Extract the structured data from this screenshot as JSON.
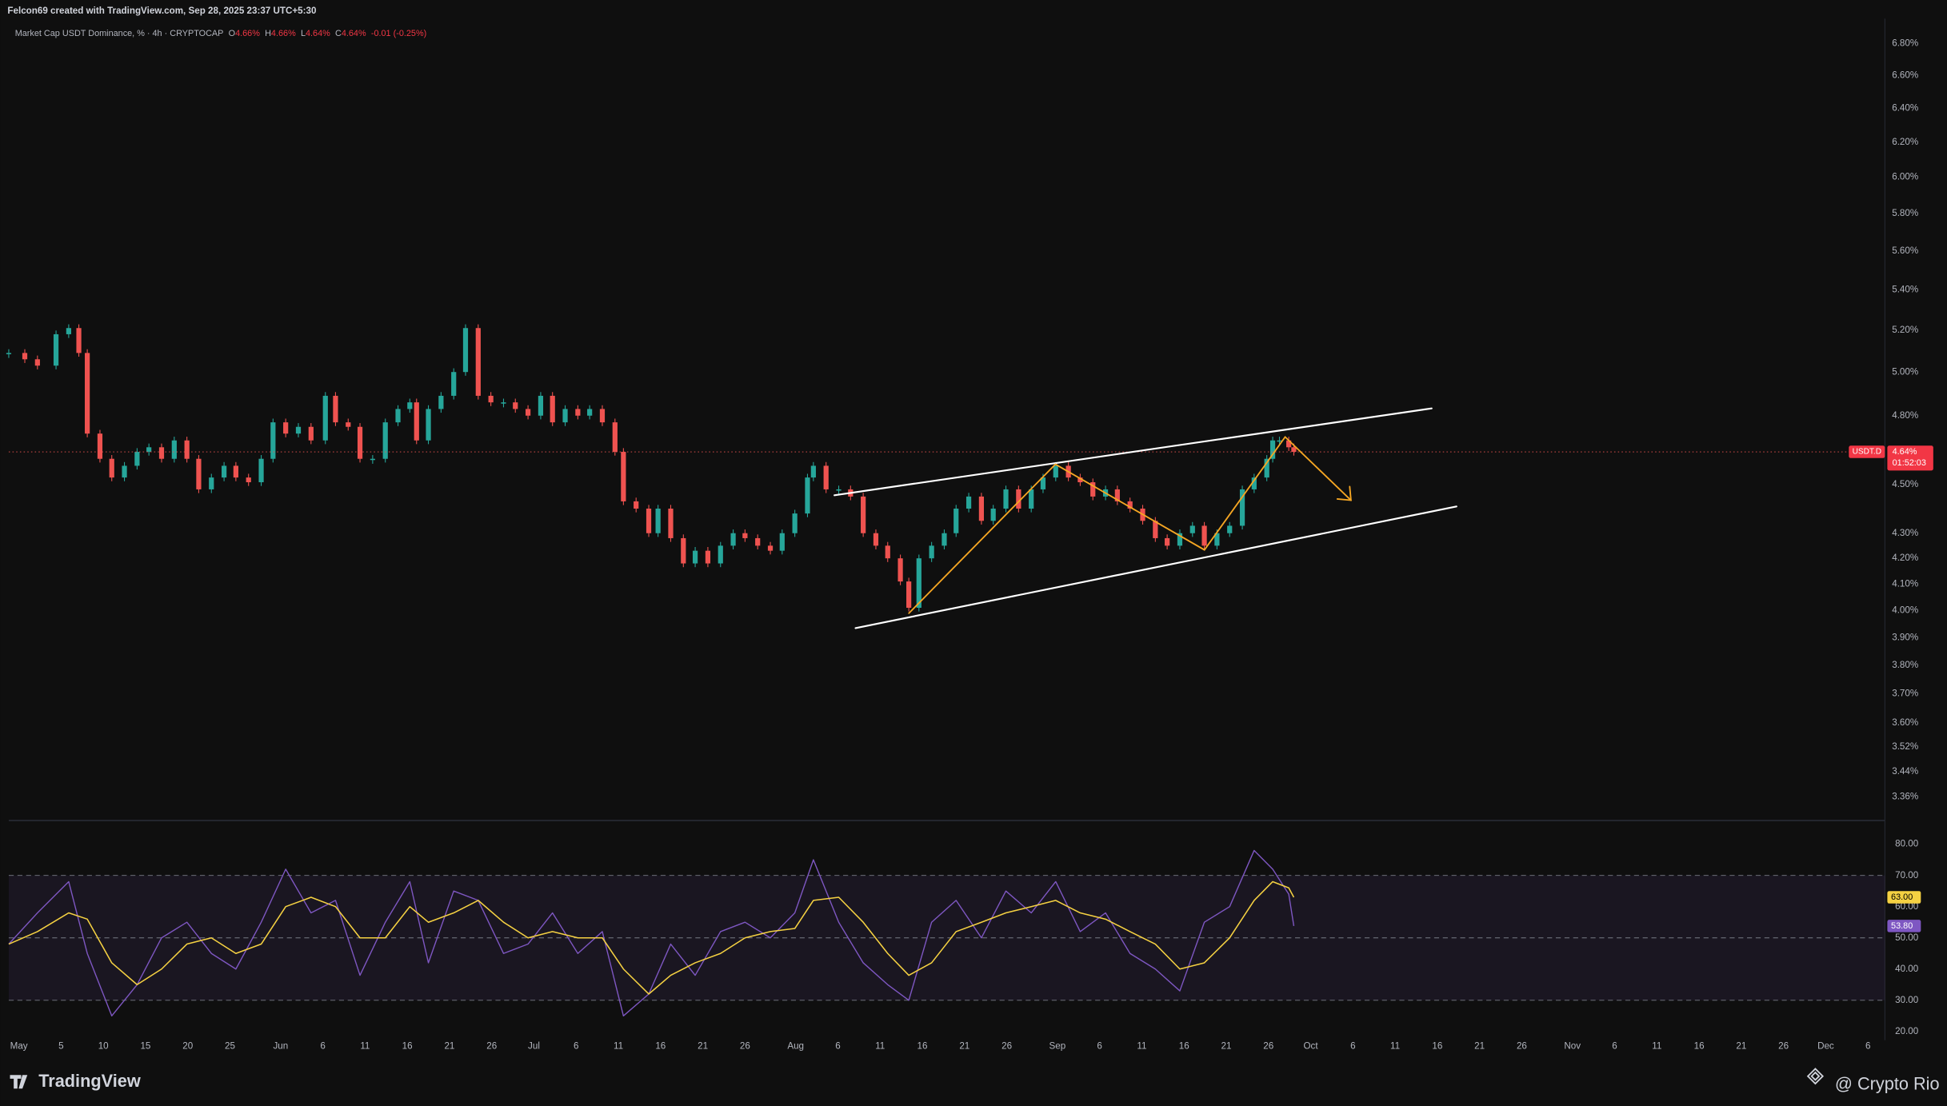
{
  "header": "Felcon69 created with TradingView.com, Sep 28, 2025 23:37 UTC+5:30",
  "footer": {
    "brand": "TradingView",
    "credit": "@ Crypto Rio"
  },
  "chart_data": [
    {
      "type": "candlestick",
      "title": "Market Cap USDT Dominance, % · 4h · CRYPTOCAP",
      "ohlc": [
        {
          "key": "O",
          "text": "4.66%"
        },
        {
          "key": "H",
          "text": "4.66%"
        },
        {
          "key": "L",
          "text": "4.64%"
        },
        {
          "key": "C",
          "text": "4.64%"
        }
      ],
      "change": "-0.01 (-0.25%)",
      "symbol": "USDT.D",
      "last_value": 4.64,
      "last_label": "4.64%",
      "countdown": "01:52:03",
      "log_scale": true,
      "grid": false,
      "up_color": "#26a69a",
      "down_color": "#ef5350",
      "x": [
        -1.2,
        0.7,
        2.2,
        4.4,
        5.9,
        7.1,
        8.1,
        9.6,
        11.0,
        12.5,
        14.0,
        15.4,
        16.9,
        18.4,
        19.9,
        21.3,
        22.8,
        24.3,
        25.7,
        27.2,
        28.7,
        30.1,
        31.6,
        33.1,
        34.6,
        36.3,
        37.5,
        39.0,
        40.4,
        41.9,
        43.4,
        44.9,
        46.3,
        47.1,
        48.5,
        50.0,
        51.5,
        52.9,
        54.4,
        55.9,
        57.4,
        58.8,
        60.3,
        61.8,
        63.2,
        64.7,
        66.2,
        67.6,
        69.1,
        70.6,
        71.6,
        73.1,
        74.6,
        75.7,
        77.2,
        78.7,
        80.1,
        81.6,
        83.1,
        84.6,
        86.0,
        87.5,
        89.0,
        90.4,
        91.9,
        93.4,
        94.1,
        95.6,
        97.1,
        98.5,
        100.0,
        101.5,
        102.9,
        104.4,
        105.4,
        106.6,
        108.1,
        109.6,
        111.0,
        112.5,
        114.0,
        115.4,
        116.9,
        118.4,
        119.9,
        121.3,
        122.8,
        124.3,
        125.7,
        127.2,
        128.7,
        130.1,
        131.6,
        133.1,
        134.6,
        136.0,
        137.5,
        139.0,
        140.4,
        141.9,
        143.4,
        144.9,
        146.3,
        147.8,
        148.5,
        149.3,
        150.4,
        151.0
      ],
      "series": [
        {
          "name": "USDT.D",
          "values": [
            5.09,
            5.06,
            5.03,
            5.18,
            5.21,
            5.09,
            4.72,
            4.61,
            4.53,
            4.58,
            4.64,
            4.66,
            4.61,
            4.69,
            4.61,
            4.48,
            4.53,
            4.58,
            4.53,
            4.51,
            4.61,
            4.77,
            4.72,
            4.75,
            4.69,
            4.89,
            4.77,
            4.75,
            4.61,
            4.61,
            4.77,
            4.83,
            4.86,
            4.69,
            4.83,
            4.89,
            5.0,
            5.21,
            4.89,
            4.86,
            4.86,
            4.83,
            4.8,
            4.89,
            4.77,
            4.83,
            4.8,
            4.83,
            4.77,
            4.64,
            4.43,
            4.4,
            4.3,
            4.4,
            4.28,
            4.18,
            4.23,
            4.18,
            4.25,
            4.3,
            4.28,
            4.25,
            4.23,
            4.3,
            4.38,
            4.53,
            4.58,
            4.48,
            4.48,
            4.45,
            4.3,
            4.25,
            4.2,
            4.11,
            4.01,
            4.2,
            4.25,
            4.3,
            4.4,
            4.45,
            4.35,
            4.4,
            4.48,
            4.4,
            4.48,
            4.53,
            4.58,
            4.53,
            4.51,
            4.45,
            4.48,
            4.43,
            4.4,
            4.35,
            4.28,
            4.25,
            4.3,
            4.33,
            4.25,
            4.3,
            4.33,
            4.48,
            4.53,
            4.61,
            4.69,
            4.69,
            4.66,
            4.64
          ]
        }
      ],
      "xlim": [
        -1.2,
        221
      ],
      "xticks": [
        {
          "value": 0,
          "label": "May"
        },
        5,
        10,
        15,
        20,
        25,
        {
          "value": 31,
          "label": "Jun"
        },
        {
          "value": 36,
          "label": "6"
        },
        {
          "value": 41,
          "label": "11"
        },
        {
          "value": 46,
          "label": "16"
        },
        {
          "value": 51,
          "label": "21"
        },
        {
          "value": 56,
          "label": "26"
        },
        {
          "value": 61,
          "label": "Jul"
        },
        {
          "value": 66,
          "label": "6"
        },
        {
          "value": 71,
          "label": "11"
        },
        {
          "value": 76,
          "label": "16"
        },
        {
          "value": 81,
          "label": "21"
        },
        {
          "value": 86,
          "label": "26"
        },
        {
          "value": 92,
          "label": "Aug"
        },
        {
          "value": 97,
          "label": "6"
        },
        {
          "value": 102,
          "label": "11"
        },
        {
          "value": 107,
          "label": "16"
        },
        {
          "value": 112,
          "label": "21"
        },
        {
          "value": 117,
          "label": "26"
        },
        {
          "value": 123,
          "label": "Sep"
        },
        {
          "value": 128,
          "label": "6"
        },
        {
          "value": 133,
          "label": "11"
        },
        {
          "value": 138,
          "label": "16"
        },
        {
          "value": 143,
          "label": "21"
        },
        {
          "value": 148,
          "label": "26"
        },
        {
          "value": 153,
          "label": "Oct"
        },
        {
          "value": 158,
          "label": "6"
        },
        {
          "value": 163,
          "label": "11"
        },
        {
          "value": 168,
          "label": "16"
        },
        {
          "value": 173,
          "label": "21"
        },
        {
          "value": 178,
          "label": "26"
        },
        {
          "value": 184,
          "label": "Nov"
        },
        {
          "value": 189,
          "label": "6"
        },
        {
          "value": 194,
          "label": "11"
        },
        {
          "value": 199,
          "label": "16"
        },
        {
          "value": 204,
          "label": "21"
        },
        {
          "value": 209,
          "label": "26"
        },
        {
          "value": 214,
          "label": "Dec"
        },
        {
          "value": 219,
          "label": "6"
        }
      ],
      "ylim": [
        3.29,
        6.96
      ],
      "yticks": [
        {
          "value": 6.8,
          "label": "6.80%"
        },
        {
          "value": 6.6,
          "label": "6.60%"
        },
        {
          "value": 6.4,
          "label": "6.40%"
        },
        {
          "value": 6.2,
          "label": "6.20%"
        },
        {
          "value": 6.0,
          "label": "6.00%"
        },
        {
          "value": 5.8,
          "label": "5.80%"
        },
        {
          "value": 5.6,
          "label": "5.60%"
        },
        {
          "value": 5.4,
          "label": "5.40%"
        },
        {
          "value": 5.2,
          "label": "5.20%"
        },
        {
          "value": 5.0,
          "label": "5.00%"
        },
        {
          "value": 4.8,
          "label": "4.80%"
        },
        {
          "value": 4.5,
          "label": "4.50%"
        },
        {
          "value": 4.3,
          "label": "4.30%"
        },
        {
          "value": 4.2,
          "label": "4.20%"
        },
        {
          "value": 4.1,
          "label": "4.10%"
        },
        {
          "value": 4.0,
          "label": "4.00%"
        },
        {
          "value": 3.9,
          "label": "3.90%"
        },
        {
          "value": 3.8,
          "label": "3.80%"
        },
        {
          "value": 3.7,
          "label": "3.70%"
        },
        {
          "value": 3.6,
          "label": "3.60%"
        },
        {
          "value": 3.52,
          "label": "3.52%"
        },
        {
          "value": 3.44,
          "label": "3.44%"
        },
        {
          "value": 3.36,
          "label": "3.36%"
        }
      ]
    },
    {
      "type": "line",
      "grid": false,
      "x": [
        -1.2,
        2.2,
        5.9,
        8.1,
        11.0,
        14.0,
        16.9,
        19.9,
        22.8,
        25.7,
        28.7,
        31.6,
        34.6,
        37.5,
        40.4,
        43.4,
        46.3,
        48.5,
        51.5,
        54.4,
        57.4,
        60.3,
        63.2,
        66.2,
        69.1,
        71.6,
        74.6,
        77.2,
        80.1,
        83.1,
        86.0,
        89.0,
        91.9,
        94.1,
        97.1,
        100.0,
        102.9,
        105.4,
        108.1,
        111.0,
        114.0,
        116.9,
        119.9,
        122.8,
        125.7,
        128.7,
        131.6,
        134.6,
        137.5,
        140.4,
        143.4,
        146.3,
        148.5,
        150.4,
        151.0
      ],
      "series": [
        {
          "name": "RSI",
          "color": "#7e57c2",
          "values": [
            48,
            58,
            68,
            45,
            25,
            35,
            50,
            55,
            45,
            40,
            55,
            72,
            58,
            62,
            38,
            55,
            68,
            42,
            65,
            62,
            45,
            48,
            58,
            45,
            52,
            25,
            32,
            48,
            38,
            52,
            55,
            50,
            58,
            75,
            55,
            42,
            35,
            30,
            55,
            62,
            50,
            65,
            58,
            68,
            52,
            58,
            45,
            40,
            33,
            55,
            60,
            78,
            72,
            64,
            53.8
          ],
          "badge_label": "53.80",
          "badge_color": "#7e57c2"
        },
        {
          "name": "RSI MA",
          "color": "#f5d142",
          "values": [
            48,
            52,
            58,
            56,
            42,
            35,
            40,
            48,
            50,
            45,
            48,
            60,
            63,
            60,
            50,
            50,
            60,
            55,
            58,
            62,
            55,
            50,
            52,
            50,
            50,
            40,
            32,
            38,
            42,
            45,
            50,
            52,
            53,
            62,
            63,
            55,
            45,
            38,
            42,
            52,
            55,
            58,
            60,
            62,
            58,
            56,
            52,
            48,
            40,
            42,
            50,
            62,
            68,
            66,
            63
          ],
          "badge_label": "63.00",
          "badge_color": "#f5d142"
        }
      ],
      "band": [
        30,
        70
      ],
      "midline": 50,
      "band_color": "#7e57c2",
      "xlim": [
        -1.2,
        221
      ],
      "ylim": [
        17.2,
        87.2
      ],
      "yticks": [
        {
          "value": 80,
          "label": "80.00"
        },
        {
          "value": 70,
          "label": "70.00"
        },
        {
          "value": 60,
          "label": "60.00"
        },
        {
          "value": 50,
          "label": "50.00"
        },
        {
          "value": 40,
          "label": "40.00"
        },
        {
          "value": 30,
          "label": "30.00"
        },
        {
          "value": 20,
          "label": "20.00"
        }
      ]
    }
  ]
}
